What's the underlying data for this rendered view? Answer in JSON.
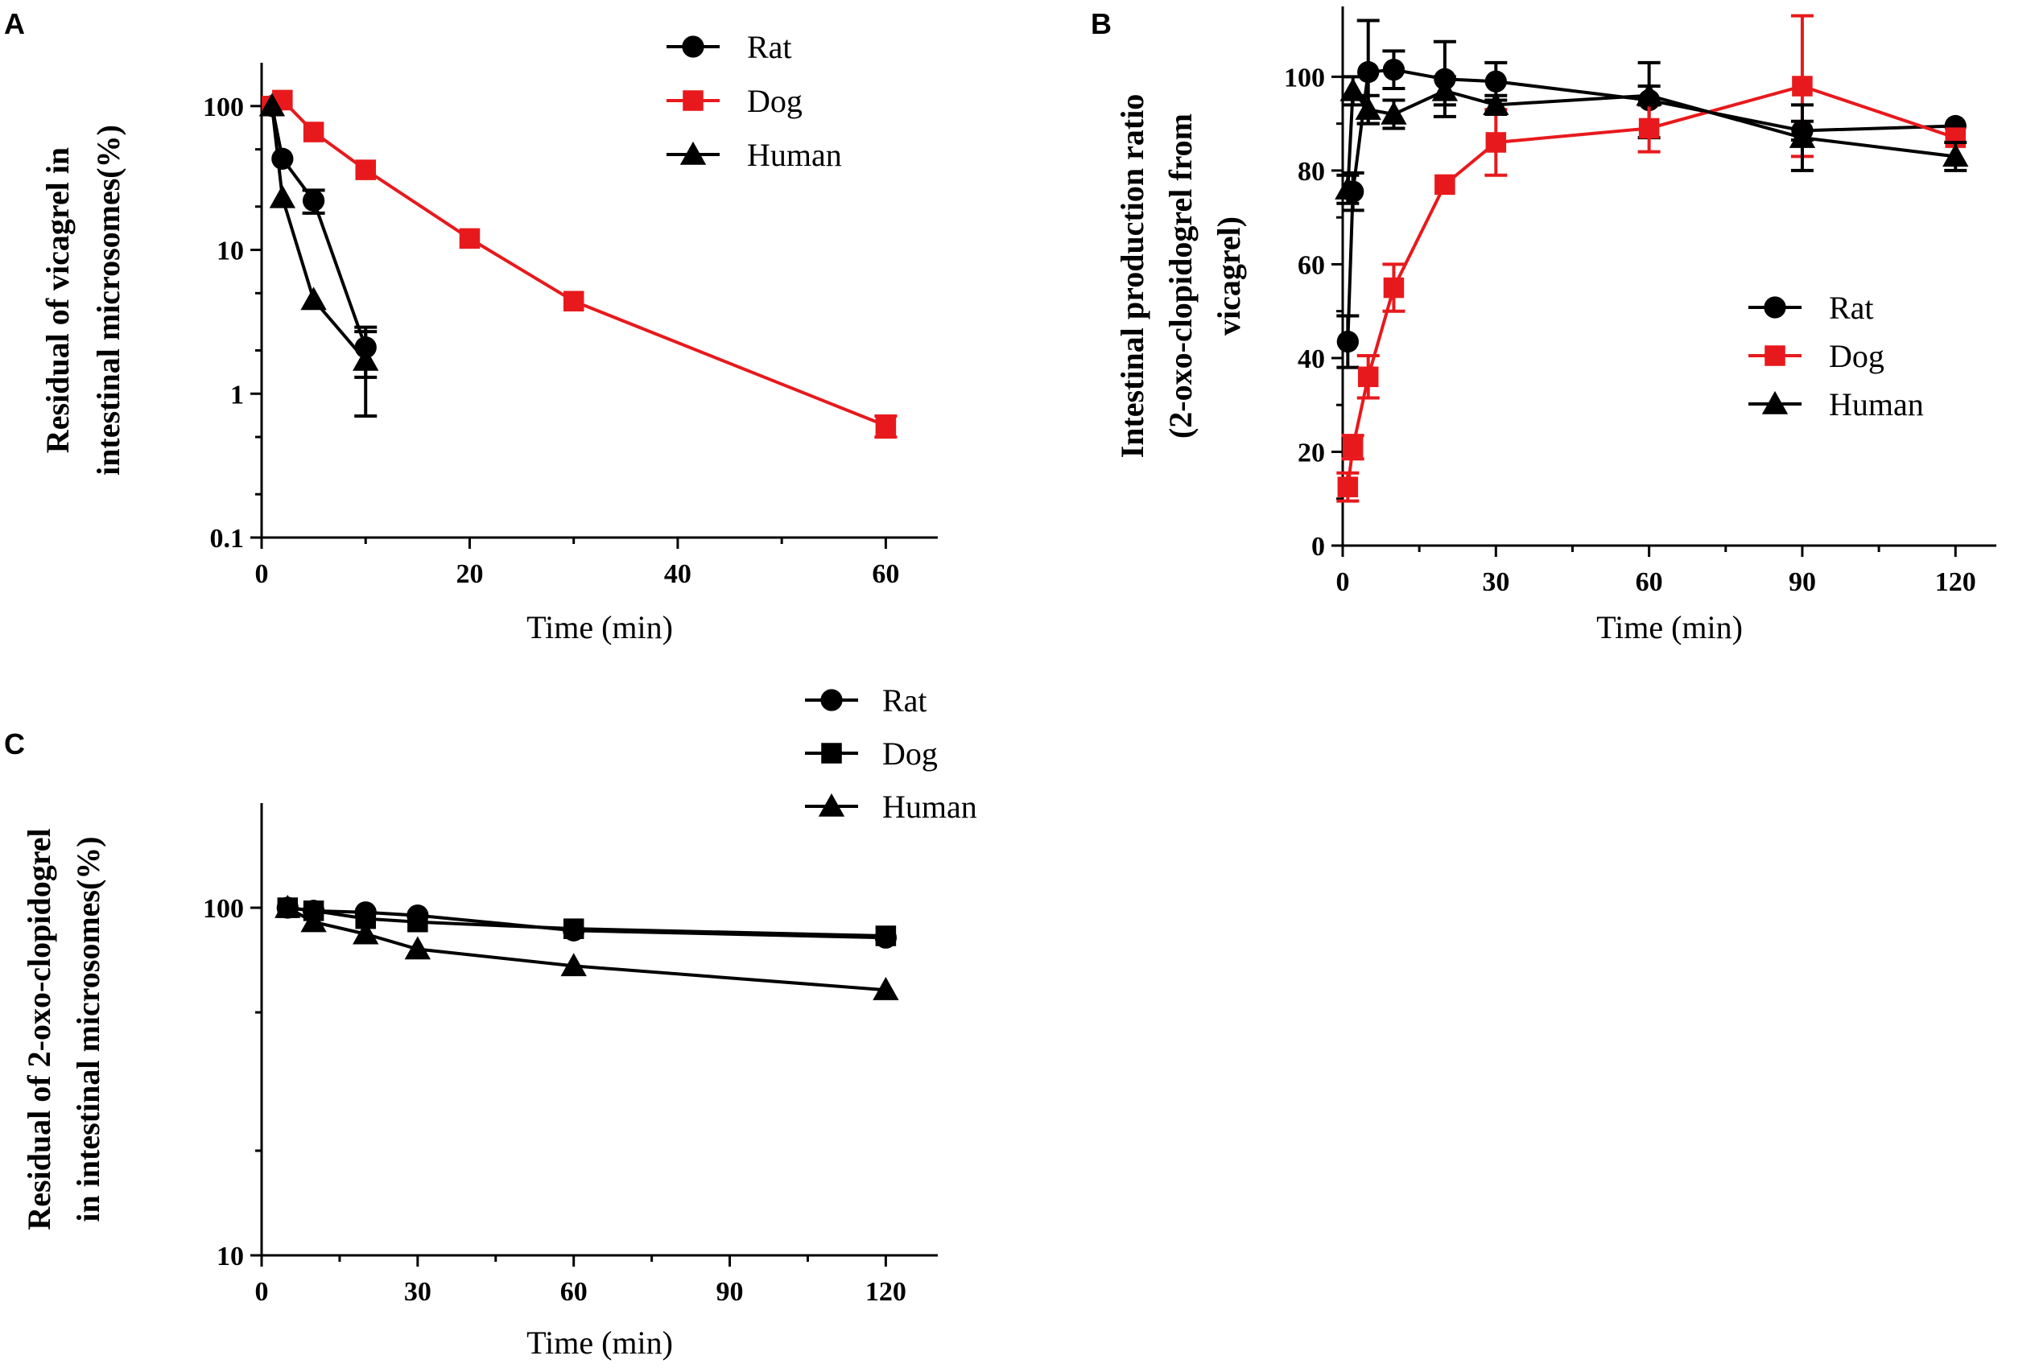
{
  "colors": {
    "black": "#000000",
    "red": "#e8191c"
  },
  "chart_data": [
    {
      "panel": "A",
      "type": "line",
      "title": "",
      "xlabel": "Time (min)",
      "ylabel_lines": [
        "Residual of vicagrel in",
        "intestinal microsomes(%)"
      ],
      "yscale": "log",
      "xlim": [
        0,
        65
      ],
      "ylim": [
        0.1,
        200
      ],
      "xticks": [
        0,
        20,
        40,
        60
      ],
      "xtick_labels": [
        "0",
        "20",
        "40",
        "60"
      ],
      "yticks": [
        0.1,
        1,
        10,
        100
      ],
      "ytick_labels": [
        "0.1",
        "1",
        "10",
        "100"
      ],
      "legend_position": "top-center",
      "series": [
        {
          "name": "Rat",
          "color": "#000000",
          "marker": "circle",
          "x": [
            1,
            2,
            5,
            10
          ],
          "y": [
            100,
            43,
            22,
            2.1
          ],
          "err": [
            0,
            0,
            4,
            0.8
          ]
        },
        {
          "name": "Dog",
          "color": "#e8191c",
          "marker": "square",
          "x": [
            1,
            2,
            5,
            10,
            20,
            30,
            60
          ],
          "y": [
            100,
            110,
            66,
            36,
            12,
            4.4,
            0.6
          ],
          "err": [
            0,
            0,
            0,
            0,
            0,
            0,
            0.1
          ]
        },
        {
          "name": "Human",
          "color": "#000000",
          "marker": "triangle",
          "x": [
            1,
            2,
            5,
            10
          ],
          "y": [
            100,
            23,
            4.5,
            1.7
          ],
          "err": [
            0,
            0,
            0,
            1.0
          ]
        }
      ]
    },
    {
      "panel": "B",
      "type": "line",
      "title": "",
      "xlabel": "Time (min)",
      "ylabel_lines": [
        "Intestinal production ratio",
        "(2-oxo-clopidogrel from",
        "vicagrel)"
      ],
      "yscale": "linear",
      "xlim": [
        0,
        128
      ],
      "ylim": [
        0,
        115
      ],
      "xticks": [
        0,
        30,
        60,
        90,
        120
      ],
      "xtick_labels": [
        "0",
        "30",
        "60",
        "90",
        "120"
      ],
      "yticks": [
        0,
        20,
        40,
        60,
        80,
        100
      ],
      "ytick_labels": [
        "0",
        "20",
        "40",
        "60",
        "80",
        "100"
      ],
      "legend_position": "center-right",
      "series": [
        {
          "name": "Rat",
          "color": "#000000",
          "marker": "circle",
          "x": [
            1,
            2,
            5,
            10,
            20,
            30,
            60,
            90,
            120
          ],
          "y": [
            43.5,
            75.5,
            101,
            101.5,
            99.5,
            99,
            95,
            88.5,
            89.5
          ],
          "err": [
            5.5,
            4,
            11,
            4,
            8,
            4,
            8,
            2,
            0
          ]
        },
        {
          "name": "Dog",
          "color": "#e8191c",
          "marker": "square",
          "x": [
            1,
            2,
            5,
            10,
            20,
            30,
            60,
            90,
            120
          ],
          "y": [
            12.5,
            21,
            36,
            55,
            77,
            86,
            89,
            98,
            87
          ],
          "err": [
            3,
            2.5,
            4.5,
            5,
            0,
            7,
            5,
            15,
            0
          ]
        },
        {
          "name": "Human",
          "color": "#000000",
          "marker": "triangle",
          "x": [
            1,
            2,
            5,
            10,
            20,
            30,
            60,
            90,
            120
          ],
          "y": [
            76,
            97,
            93,
            92,
            97,
            94,
            96,
            87,
            83
          ],
          "err": [
            3,
            3,
            3,
            3,
            3,
            2,
            2,
            7,
            3
          ]
        }
      ]
    },
    {
      "panel": "C",
      "type": "line",
      "title": "",
      "xlabel": "Time (min)",
      "ylabel_lines": [
        "Residual of 2-oxo-clopidogrel",
        "in intestinal microsomes(%)"
      ],
      "yscale": "log",
      "xlim": [
        0,
        130
      ],
      "ylim": [
        10,
        200
      ],
      "xticks": [
        0,
        30,
        60,
        90,
        120
      ],
      "xtick_labels": [
        "0",
        "30",
        "60",
        "90",
        "120"
      ],
      "yticks": [
        10,
        100
      ],
      "ytick_labels": [
        "10",
        "100"
      ],
      "legend_position": "top-right",
      "series": [
        {
          "name": "Rat",
          "color": "#000000",
          "marker": "circle",
          "x": [
            5,
            10,
            20,
            30,
            60,
            120
          ],
          "y": [
            100,
            98,
            97,
            95,
            86,
            82
          ],
          "err": [
            0,
            0,
            0,
            0,
            0,
            0
          ]
        },
        {
          "name": "Dog",
          "color": "#000000",
          "marker": "square",
          "x": [
            5,
            10,
            20,
            30,
            60,
            120
          ],
          "y": [
            100,
            98,
            93,
            91,
            87,
            83
          ],
          "err": [
            0,
            0,
            0,
            0,
            0,
            0
          ]
        },
        {
          "name": "Human",
          "color": "#000000",
          "marker": "triangle",
          "x": [
            5,
            10,
            20,
            30,
            60,
            120
          ],
          "y": [
            100,
            91,
            84,
            76,
            68,
            58
          ],
          "err": [
            0,
            0,
            0,
            0,
            0,
            0
          ]
        }
      ]
    }
  ]
}
